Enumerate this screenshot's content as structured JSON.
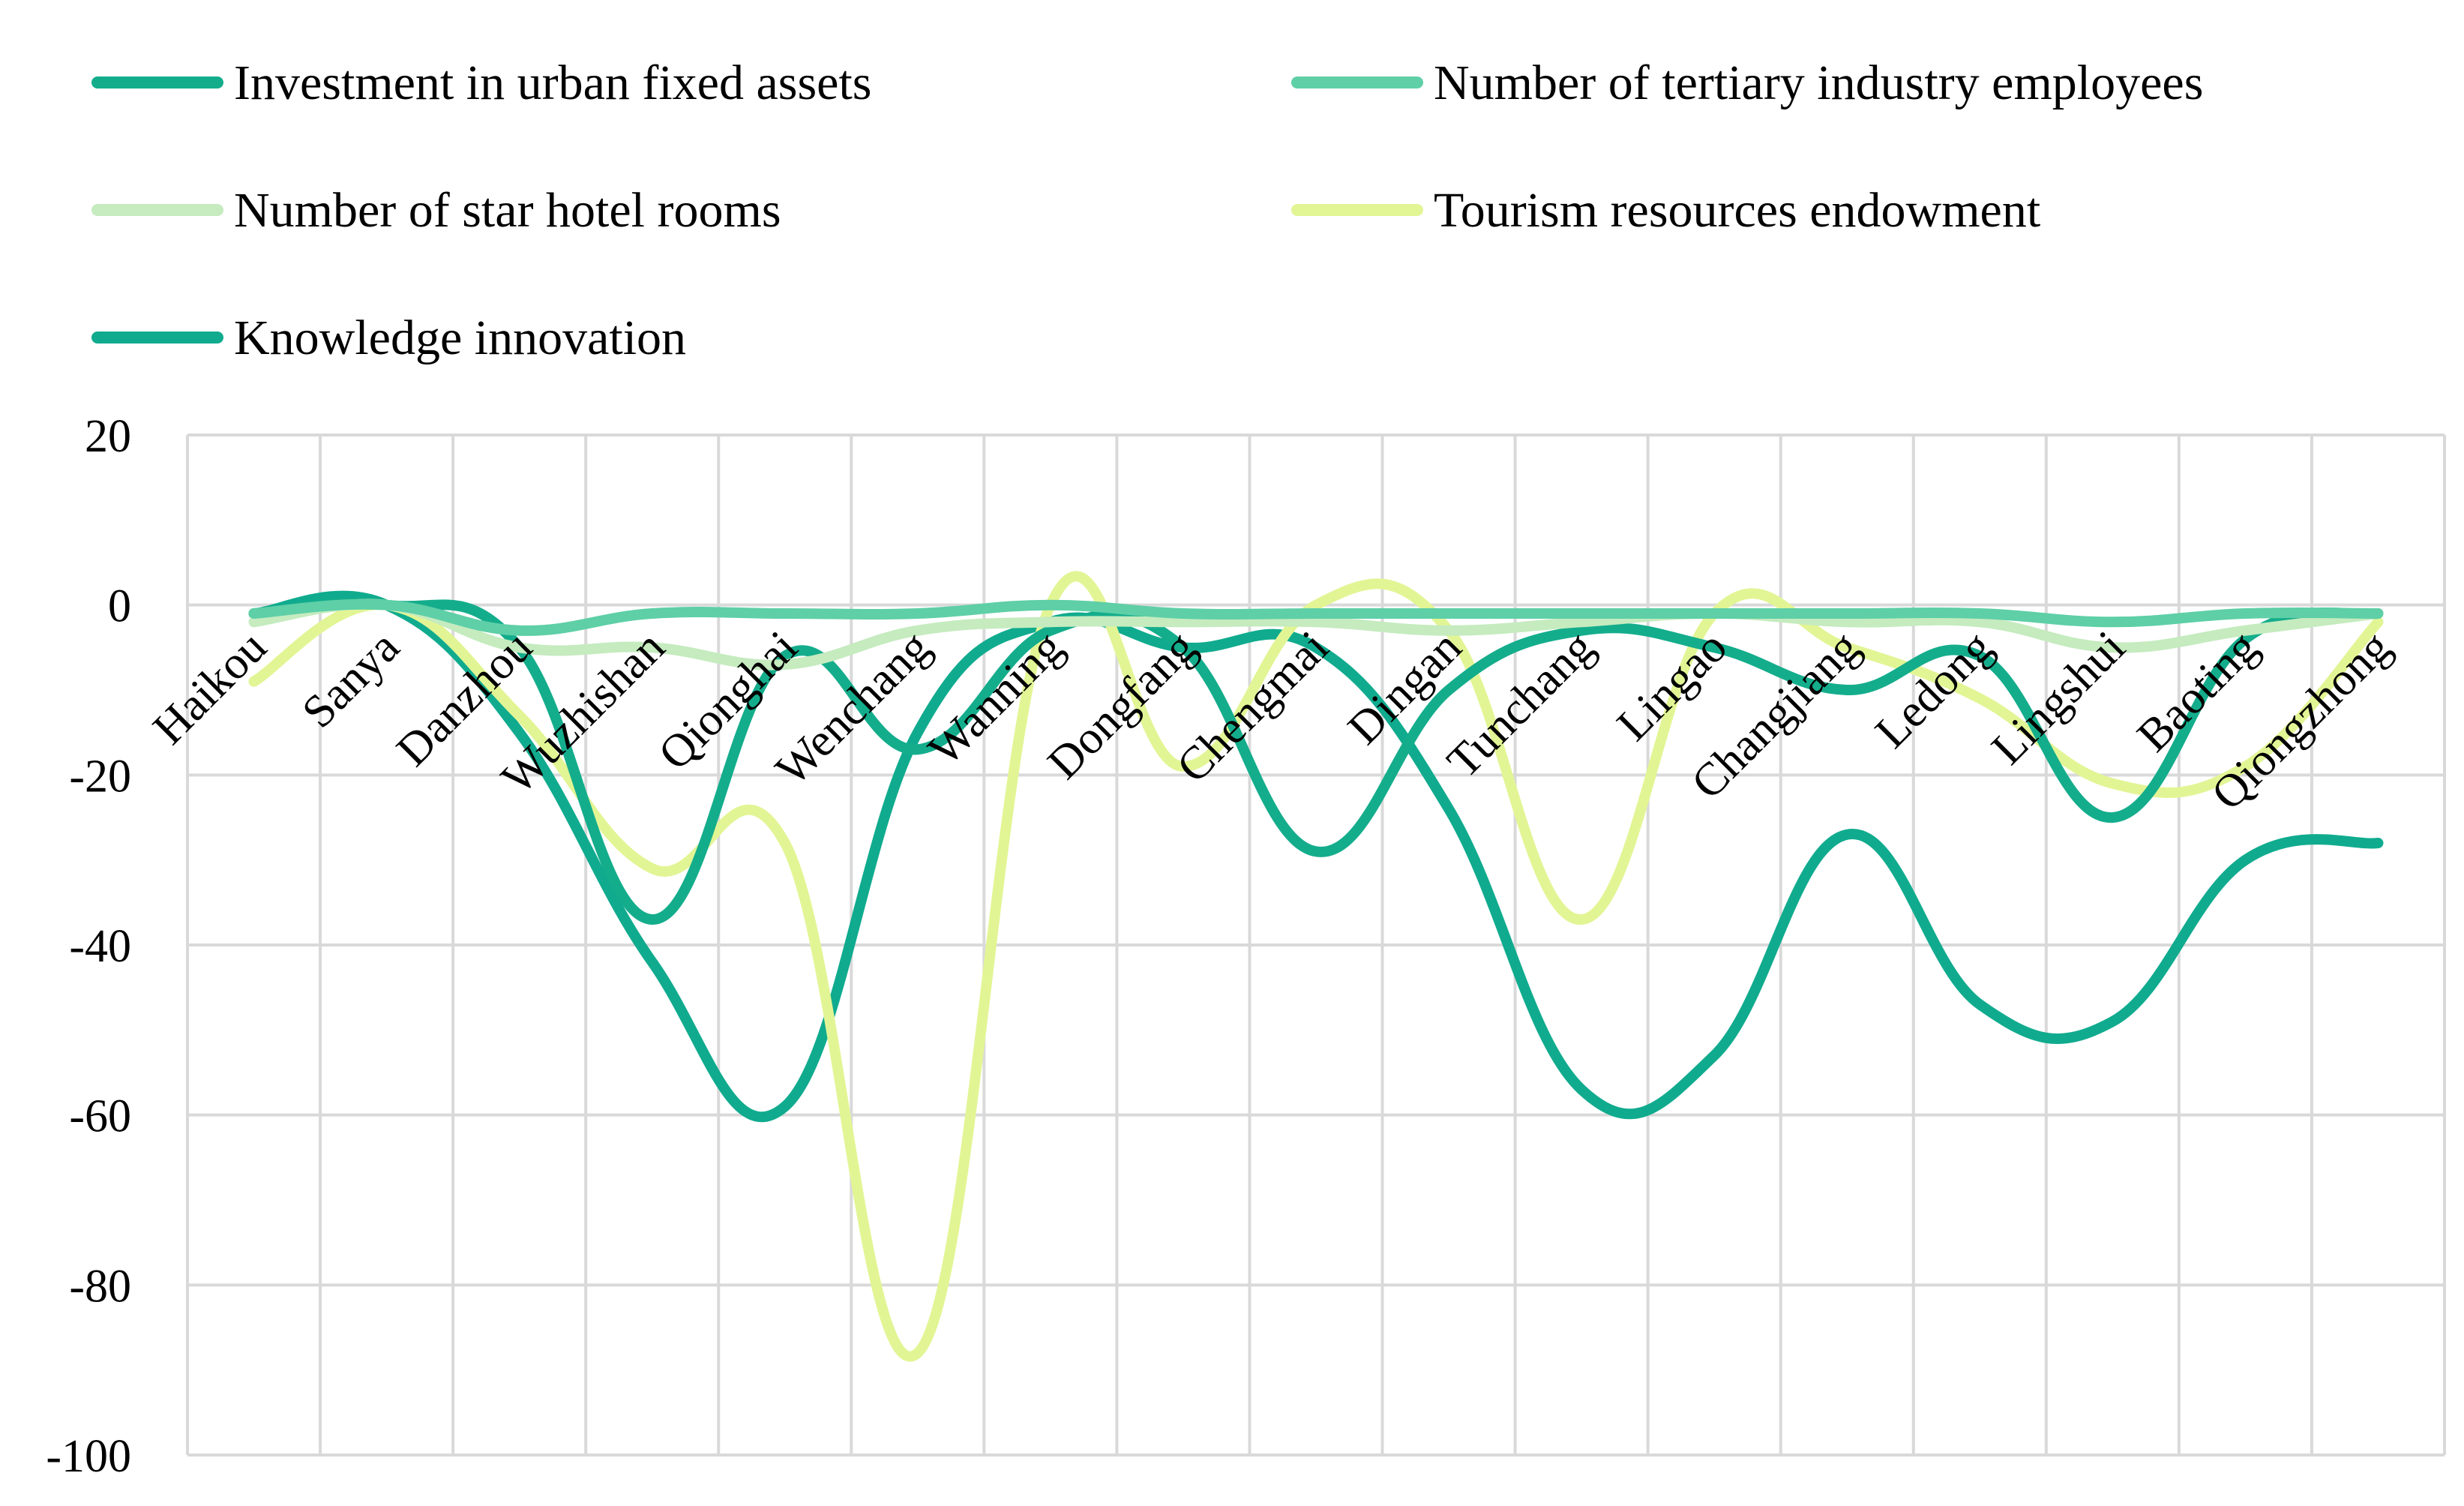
{
  "chart_data": {
    "type": "line",
    "title": "",
    "xlabel": "",
    "ylabel": "",
    "ylim": [
      -100,
      20
    ],
    "yticks": [
      20,
      0,
      -20,
      -40,
      -60,
      -80,
      -100
    ],
    "grid": true,
    "smooth": true,
    "legend_position": "top",
    "categories": [
      "Haikou",
      "Sanya",
      "Danzhou",
      "Wuzhishan",
      "Qionghai",
      "Wenchang",
      "Wanning",
      "Dongfang",
      "Chengmai",
      "Dingan",
      "Tunchang",
      "Lingao",
      "Changjiang",
      "Ledong",
      "Lingshui",
      "Baoting",
      "Qiongzhong"
    ],
    "series": [
      {
        "name": "Investment in urban fixed assets",
        "color": "#14AD8C",
        "values": [
          -1,
          0,
          -5,
          -37,
          -6,
          -17,
          -3,
          -5,
          -29,
          -10,
          -3,
          -5,
          -10,
          -6,
          -25,
          -4,
          -1
        ]
      },
      {
        "name": "Number of tertiary industry employees",
        "color": "#5ECFA7",
        "values": [
          -1,
          0,
          -3,
          -1,
          -1,
          -1,
          0,
          -1,
          -1,
          -1,
          -1,
          -1,
          -1,
          -1,
          -2,
          -1,
          -1
        ]
      },
      {
        "name": "Number of star hotel rooms",
        "color": "#C5EBBF",
        "values": [
          -2,
          0,
          -5,
          -5,
          -7,
          -3,
          -2,
          -2,
          -2,
          -3,
          -2,
          -1,
          -2,
          -2,
          -5,
          -3,
          -1
        ]
      },
      {
        "name": "Tourism resources endowment",
        "color": "#E2F595",
        "values": [
          -9,
          0,
          -13,
          -31,
          -28,
          -88,
          0,
          -19,
          0,
          -3,
          -37,
          -1,
          -5,
          -11,
          -21,
          -19,
          -2
        ]
      },
      {
        "name": "Knowledge innovation",
        "color": "#10AB8E",
        "values": [
          -1,
          0,
          -15,
          -42,
          -59,
          -15,
          -2,
          -5,
          -5,
          -24,
          -57,
          -53,
          -27,
          -47,
          -49,
          -30,
          -28
        ]
      }
    ]
  }
}
